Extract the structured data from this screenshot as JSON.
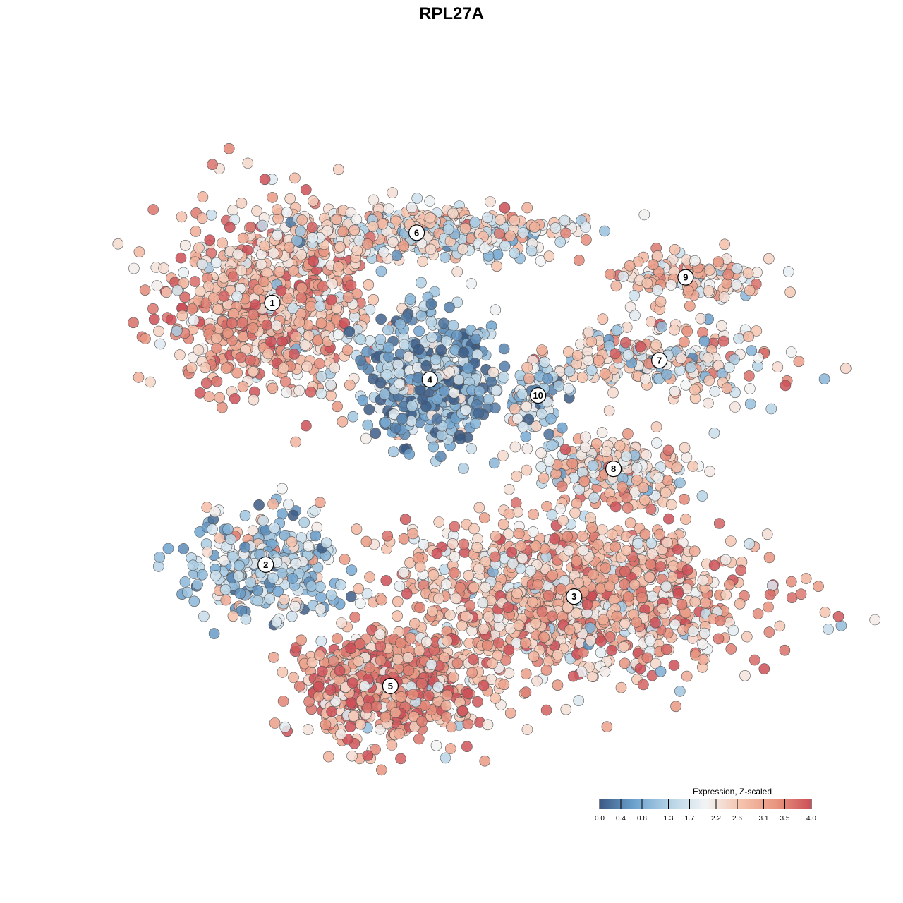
{
  "chart_data": {
    "type": "scatter",
    "title": "RPL27A",
    "point_style": {
      "outline": "#555555",
      "opacity": 0.85
    },
    "clusters": [
      {
        "label": "1",
        "x": 0.2,
        "y": 0.73,
        "count": 720,
        "mean_expr": 2.9,
        "sd": [
          0.075,
          0.075
        ]
      },
      {
        "label": "6",
        "x": 0.42,
        "y": 0.84,
        "count": 520,
        "mean_expr": 2.2,
        "sd": [
          0.11,
          0.02
        ]
      },
      {
        "label": "9",
        "x": 0.83,
        "y": 0.77,
        "count": 130,
        "mean_expr": 2.5,
        "sd": [
          0.06,
          0.02
        ]
      },
      {
        "label": "7",
        "x": 0.79,
        "y": 0.64,
        "count": 240,
        "mean_expr": 2.3,
        "sd": [
          0.09,
          0.03
        ]
      },
      {
        "label": "4",
        "x": 0.44,
        "y": 0.61,
        "count": 520,
        "mean_expr": 0.9,
        "sd": [
          0.05,
          0.05
        ]
      },
      {
        "label": "10",
        "x": 0.605,
        "y": 0.585,
        "count": 80,
        "mean_expr": 1.4,
        "sd": [
          0.02,
          0.03
        ]
      },
      {
        "label": "8",
        "x": 0.72,
        "y": 0.47,
        "count": 210,
        "mean_expr": 2.4,
        "sd": [
          0.06,
          0.025
        ]
      },
      {
        "label": "2",
        "x": 0.19,
        "y": 0.32,
        "count": 300,
        "mean_expr": 1.5,
        "sd": [
          0.06,
          0.04
        ]
      },
      {
        "label": "3",
        "x": 0.66,
        "y": 0.27,
        "count": 1150,
        "mean_expr": 2.8,
        "sd": [
          0.13,
          0.06
        ]
      },
      {
        "label": "5",
        "x": 0.38,
        "y": 0.13,
        "count": 600,
        "mean_expr": 3.1,
        "sd": [
          0.07,
          0.045
        ]
      }
    ],
    "xlim": [
      0,
      1
    ],
    "ylim": [
      0,
      1
    ],
    "colorbar": {
      "title": "Expression, Z-scaled",
      "min": 0.0,
      "max": 4.0,
      "tick_labels": [
        "0.0",
        "0.4",
        "0.8",
        "1.3",
        "1.7",
        "2.2",
        "2.6",
        "3.1",
        "3.5",
        "4.0"
      ],
      "tick_values": [
        0.0,
        0.4,
        0.8,
        1.3,
        1.7,
        2.2,
        2.6,
        3.1,
        3.5,
        4.0
      ],
      "colors": [
        "#3b5a84",
        "#6ea3cf",
        "#b5d3e6",
        "#f2f4f5",
        "#f5c3ad",
        "#e8957f",
        "#cc4f57"
      ]
    }
  }
}
